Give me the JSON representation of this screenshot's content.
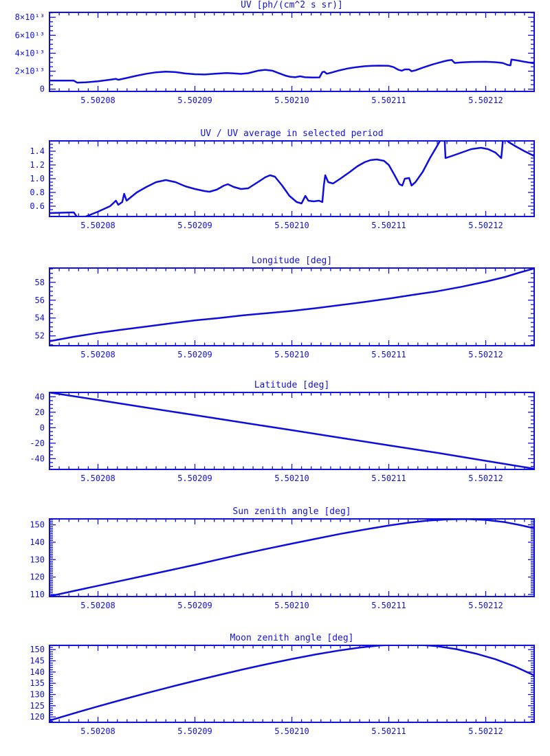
{
  "page": {
    "background": "#ffffff"
  },
  "colors": {
    "plot_blue": "#1111dd",
    "curve_blue": "#0d0de0"
  },
  "x_axis": {
    "range": [
      5.502075,
      5.502125
    ],
    "tick_values": [
      5.50208,
      5.50209,
      5.5021,
      5.50211,
      5.50212
    ],
    "tick_labels": [
      "5.50208",
      "5.50209",
      "5.50210",
      "5.50211",
      "5.50212"
    ],
    "minor_step": 1e-06
  },
  "points_format": "[fraction_across_x_axis, y_value]; actual x = x_axis.range[0] + fraction * (x_axis.range[1]-x_axis.range[0])",
  "chart_data": [
    {
      "type": "line",
      "title": "UV [ph/(cm^2 s sr)]",
      "legend": "none",
      "grid": "off",
      "y_axis": {
        "range": [
          -2500000000000.0,
          85500000000000.0
        ],
        "tick_values": [
          0,
          20000000000000.0,
          40000000000000.0,
          60000000000000.0,
          80000000000000.0
        ],
        "tick_labels": [
          "0",
          "2×10¹³",
          "4×10¹³",
          "6×10¹³",
          "8×10¹³"
        ],
        "minor_step": 5000000000000.0
      },
      "points": [
        [
          0,
          9500000000000.0
        ],
        [
          0.05,
          9500000000000.0
        ],
        [
          0.057,
          7300000000000.0
        ],
        [
          0.075,
          7600000000000.0
        ],
        [
          0.1,
          8800000000000.0
        ],
        [
          0.125,
          10500000000000.0
        ],
        [
          0.137,
          11400000000000.0
        ],
        [
          0.142,
          10400000000000.0
        ],
        [
          0.155,
          12000000000000.0
        ],
        [
          0.18,
          15000000000000.0
        ],
        [
          0.2,
          17200000000000.0
        ],
        [
          0.22,
          18800000000000.0
        ],
        [
          0.24,
          19500000000000.0
        ],
        [
          0.26,
          19000000000000.0
        ],
        [
          0.28,
          17500000000000.0
        ],
        [
          0.3,
          16600000000000.0
        ],
        [
          0.32,
          16300000000000.0
        ],
        [
          0.345,
          17300000000000.0
        ],
        [
          0.365,
          18000000000000.0
        ],
        [
          0.38,
          17600000000000.0
        ],
        [
          0.395,
          17000000000000.0
        ],
        [
          0.41,
          17800000000000.0
        ],
        [
          0.43,
          20500000000000.0
        ],
        [
          0.445,
          21500000000000.0
        ],
        [
          0.46,
          20500000000000.0
        ],
        [
          0.475,
          17500000000000.0
        ],
        [
          0.487,
          15000000000000.0
        ],
        [
          0.497,
          13700000000000.0
        ],
        [
          0.507,
          13300000000000.0
        ],
        [
          0.517,
          14300000000000.0
        ],
        [
          0.527,
          13300000000000.0
        ],
        [
          0.542,
          13000000000000.0
        ],
        [
          0.557,
          13100000000000.0
        ],
        [
          0.563,
          19000000000000.0
        ],
        [
          0.567,
          19500000000000.0
        ],
        [
          0.572,
          17200000000000.0
        ],
        [
          0.582,
          18500000000000.0
        ],
        [
          0.595,
          20500000000000.0
        ],
        [
          0.615,
          23000000000000.0
        ],
        [
          0.633,
          24500000000000.0
        ],
        [
          0.65,
          25500000000000.0
        ],
        [
          0.665,
          26000000000000.0
        ],
        [
          0.68,
          26200000000000.0
        ],
        [
          0.7,
          26000000000000.0
        ],
        [
          0.71,
          24500000000000.0
        ],
        [
          0.72,
          21500000000000.0
        ],
        [
          0.727,
          20500000000000.0
        ],
        [
          0.733,
          22000000000000.0
        ],
        [
          0.742,
          22000000000000.0
        ],
        [
          0.747,
          20000000000000.0
        ],
        [
          0.755,
          21000000000000.0
        ],
        [
          0.77,
          24000000000000.0
        ],
        [
          0.79,
          27500000000000.0
        ],
        [
          0.81,
          30500000000000.0
        ],
        [
          0.822,
          32000000000000.0
        ],
        [
          0.83,
          32500000000000.0
        ],
        [
          0.836,
          29200000000000.0
        ],
        [
          0.85,
          29800000000000.0
        ],
        [
          0.87,
          30300000000000.0
        ],
        [
          0.9,
          30500000000000.0
        ],
        [
          0.92,
          30000000000000.0
        ],
        [
          0.935,
          29200000000000.0
        ],
        [
          0.945,
          27000000000000.0
        ],
        [
          0.951,
          26500000000000.0
        ],
        [
          0.953,
          33000000000000.0
        ],
        [
          0.965,
          32000000000000.0
        ],
        [
          0.98,
          30500000000000.0
        ],
        [
          1,
          28800000000000.0
        ]
      ]
    },
    {
      "type": "line",
      "title": "UV / UV average in selected period",
      "legend": "none",
      "grid": "off",
      "y_axis": {
        "range": [
          0.45,
          1.55
        ],
        "tick_values": [
          0.6,
          0.8,
          1.0,
          1.2,
          1.4
        ],
        "tick_labels": [
          "0.6",
          "0.8",
          "1.0",
          "1.2",
          "1.4"
        ],
        "minor_step": 0.05
      },
      "points": [
        [
          0,
          0.5
        ],
        [
          0.05,
          0.51
        ],
        [
          0.057,
          0.44
        ],
        [
          0.075,
          0.45
        ],
        [
          0.1,
          0.52
        ],
        [
          0.125,
          0.6
        ],
        [
          0.137,
          0.68
        ],
        [
          0.142,
          0.62
        ],
        [
          0.15,
          0.66
        ],
        [
          0.154,
          0.78
        ],
        [
          0.159,
          0.68
        ],
        [
          0.18,
          0.8
        ],
        [
          0.2,
          0.88
        ],
        [
          0.22,
          0.95
        ],
        [
          0.24,
          0.98
        ],
        [
          0.26,
          0.95
        ],
        [
          0.28,
          0.89
        ],
        [
          0.3,
          0.85
        ],
        [
          0.32,
          0.82
        ],
        [
          0.33,
          0.81
        ],
        [
          0.345,
          0.84
        ],
        [
          0.36,
          0.9
        ],
        [
          0.368,
          0.92
        ],
        [
          0.38,
          0.88
        ],
        [
          0.395,
          0.85
        ],
        [
          0.41,
          0.86
        ],
        [
          0.43,
          0.95
        ],
        [
          0.445,
          1.02
        ],
        [
          0.455,
          1.05
        ],
        [
          0.465,
          1.03
        ],
        [
          0.48,
          0.9
        ],
        [
          0.495,
          0.75
        ],
        [
          0.51,
          0.66
        ],
        [
          0.52,
          0.64
        ],
        [
          0.528,
          0.75
        ],
        [
          0.534,
          0.68
        ],
        [
          0.545,
          0.67
        ],
        [
          0.556,
          0.68
        ],
        [
          0.563,
          0.66
        ],
        [
          0.566,
          0.9
        ],
        [
          0.569,
          1.05
        ],
        [
          0.575,
          0.95
        ],
        [
          0.585,
          0.93
        ],
        [
          0.6,
          1.0
        ],
        [
          0.62,
          1.1
        ],
        [
          0.635,
          1.18
        ],
        [
          0.65,
          1.24
        ],
        [
          0.662,
          1.27
        ],
        [
          0.675,
          1.28
        ],
        [
          0.69,
          1.26
        ],
        [
          0.7,
          1.2
        ],
        [
          0.712,
          1.05
        ],
        [
          0.722,
          0.92
        ],
        [
          0.728,
          0.9
        ],
        [
          0.733,
          1.0
        ],
        [
          0.742,
          1.01
        ],
        [
          0.747,
          0.9
        ],
        [
          0.755,
          0.95
        ],
        [
          0.77,
          1.1
        ],
        [
          0.785,
          1.3
        ],
        [
          0.8,
          1.48
        ],
        [
          0.808,
          1.58
        ],
        [
          0.815,
          1.6
        ],
        [
          0.817,
          1.3
        ],
        [
          0.83,
          1.33
        ],
        [
          0.85,
          1.38
        ],
        [
          0.87,
          1.43
        ],
        [
          0.89,
          1.45
        ],
        [
          0.905,
          1.43
        ],
        [
          0.92,
          1.38
        ],
        [
          0.932,
          1.3
        ],
        [
          0.936,
          1.6
        ],
        [
          0.948,
          1.53
        ],
        [
          0.962,
          1.47
        ],
        [
          0.98,
          1.4
        ],
        [
          1,
          1.33
        ]
      ]
    },
    {
      "type": "line",
      "title": "Longitude [deg]",
      "legend": "none",
      "grid": "off",
      "y_axis": {
        "range": [
          50.9,
          59.6
        ],
        "tick_values": [
          52,
          54,
          56,
          58
        ],
        "tick_labels": [
          "52",
          "54",
          "56",
          "58"
        ],
        "minor_step": 0.5
      },
      "points": [
        [
          0,
          51.4
        ],
        [
          0.05,
          51.9
        ],
        [
          0.102,
          52.35
        ],
        [
          0.15,
          52.7
        ],
        [
          0.2,
          53.05
        ],
        [
          0.25,
          53.4
        ],
        [
          0.302,
          53.75
        ],
        [
          0.35,
          54.0
        ],
        [
          0.4,
          54.3
        ],
        [
          0.45,
          54.55
        ],
        [
          0.502,
          54.8
        ],
        [
          0.55,
          55.1
        ],
        [
          0.6,
          55.45
        ],
        [
          0.65,
          55.8
        ],
        [
          0.702,
          56.2
        ],
        [
          0.75,
          56.6
        ],
        [
          0.8,
          57.0
        ],
        [
          0.85,
          57.5
        ],
        [
          0.902,
          58.1
        ],
        [
          0.94,
          58.6
        ],
        [
          0.97,
          59.1
        ],
        [
          1,
          59.55
        ]
      ]
    },
    {
      "type": "line",
      "title": "Latitude [deg]",
      "legend": "none",
      "grid": "off",
      "y_axis": {
        "range": [
          -53.9,
          45.6
        ],
        "tick_values": [
          -40,
          -20,
          0,
          20,
          40
        ],
        "tick_labels": [
          "-40",
          "-20",
          "0",
          "20",
          "40"
        ],
        "minor_step": 5
      },
      "points": [
        [
          0,
          45.5
        ],
        [
          0.1,
          35.8
        ],
        [
          0.2,
          26.0
        ],
        [
          0.3,
          16.3
        ],
        [
          0.4,
          6.5
        ],
        [
          0.5,
          -3.2
        ],
        [
          0.6,
          -13.0
        ],
        [
          0.7,
          -22.8
        ],
        [
          0.8,
          -32.5
        ],
        [
          0.9,
          -42.8
        ],
        [
          1,
          -53.0
        ]
      ]
    },
    {
      "type": "line",
      "title": "Sun zenith angle [deg]",
      "legend": "none",
      "grid": "off",
      "y_axis": {
        "range": [
          108.8,
          153.4
        ],
        "tick_values": [
          110,
          120,
          130,
          140,
          150
        ],
        "tick_labels": [
          "110",
          "120",
          "130",
          "140",
          "150"
        ],
        "minor_step": 1
      },
      "points": [
        [
          0,
          109.0
        ],
        [
          0.05,
          112.0
        ],
        [
          0.1,
          115.0
        ],
        [
          0.15,
          118.0
        ],
        [
          0.2,
          121.0
        ],
        [
          0.25,
          124.0
        ],
        [
          0.3,
          127.0
        ],
        [
          0.35,
          130.2
        ],
        [
          0.4,
          133.3
        ],
        [
          0.45,
          136.3
        ],
        [
          0.5,
          139.2
        ],
        [
          0.55,
          142.0
        ],
        [
          0.6,
          144.8
        ],
        [
          0.65,
          147.3
        ],
        [
          0.7,
          149.6
        ],
        [
          0.74,
          151.2
        ],
        [
          0.78,
          152.4
        ],
        [
          0.82,
          153.1
        ],
        [
          0.86,
          153.3
        ],
        [
          0.9,
          152.8
        ],
        [
          0.94,
          151.5
        ],
        [
          0.97,
          149.9
        ],
        [
          1,
          148.0
        ]
      ]
    },
    {
      "type": "line",
      "title": "Moon zenith angle [deg]",
      "legend": "none",
      "grid": "off",
      "y_axis": {
        "range": [
          117.6,
          151.9
        ],
        "tick_values": [
          120,
          125,
          130,
          135,
          140,
          145,
          150
        ],
        "tick_labels": [
          "120",
          "125",
          "130",
          "135",
          "140",
          "145",
          "150"
        ],
        "minor_step": 1
      },
      "points": [
        [
          0,
          118.4
        ],
        [
          0.05,
          121.6
        ],
        [
          0.1,
          124.7
        ],
        [
          0.15,
          127.7
        ],
        [
          0.2,
          130.6
        ],
        [
          0.25,
          133.4
        ],
        [
          0.3,
          136.1
        ],
        [
          0.35,
          138.7
        ],
        [
          0.4,
          141.2
        ],
        [
          0.45,
          143.6
        ],
        [
          0.5,
          145.8
        ],
        [
          0.55,
          147.9
        ],
        [
          0.6,
          149.7
        ],
        [
          0.64,
          150.9
        ],
        [
          0.68,
          151.8
        ],
        [
          0.72,
          152.3
        ],
        [
          0.76,
          152.2
        ],
        [
          0.8,
          151.5
        ],
        [
          0.84,
          150.2
        ],
        [
          0.88,
          148.2
        ],
        [
          0.92,
          145.7
        ],
        [
          0.96,
          142.5
        ],
        [
          1,
          138.5
        ]
      ]
    }
  ]
}
